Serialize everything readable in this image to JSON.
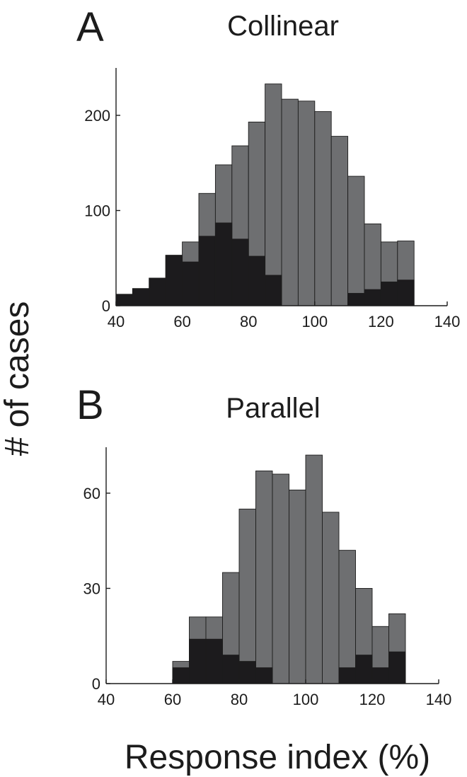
{
  "ylabel": "# of cases",
  "xlabel": "Response index (%)",
  "colors": {
    "total": "#6e6f71",
    "subset": "#1c1b1d"
  },
  "chart_data": [
    {
      "type": "bar",
      "panel": "A",
      "title": "Collinear",
      "bin_width": 5,
      "x": [
        42.5,
        47.5,
        52.5,
        57.5,
        62.5,
        67.5,
        72.5,
        77.5,
        82.5,
        87.5,
        92.5,
        97.5,
        102.5,
        107.5,
        112.5,
        117.5,
        122.5,
        127.5
      ],
      "series": [
        {
          "values": [
            12,
            18,
            29,
            53,
            67,
            118,
            148,
            168,
            193,
            233,
            217,
            215,
            204,
            178,
            136,
            86,
            67,
            68
          ]
        },
        {
          "values": [
            12,
            18,
            29,
            53,
            46,
            73,
            87,
            70,
            52,
            32,
            0,
            0,
            0,
            0,
            13,
            17,
            25,
            27
          ]
        }
      ],
      "xlim": [
        40,
        140
      ],
      "ylim": [
        0,
        240
      ],
      "xticks": [
        40,
        60,
        80,
        100,
        120,
        140
      ],
      "yticks": [
        0,
        100,
        200
      ]
    },
    {
      "type": "bar",
      "panel": "B",
      "title": "Parallel",
      "bin_width": 5,
      "x": [
        42.5,
        47.5,
        52.5,
        57.5,
        62.5,
        67.5,
        72.5,
        77.5,
        82.5,
        87.5,
        92.5,
        97.5,
        102.5,
        107.5,
        112.5,
        117.5,
        122.5,
        127.5
      ],
      "series": [
        {
          "values": [
            0,
            0,
            0,
            0,
            7,
            21,
            21,
            35,
            55,
            67,
            66,
            61,
            72,
            54,
            42,
            30,
            18,
            22
          ]
        },
        {
          "values": [
            0,
            0,
            0,
            0,
            5,
            14,
            14,
            9,
            7,
            5,
            0,
            0,
            0,
            0,
            5,
            9,
            5,
            10
          ]
        }
      ],
      "xlim": [
        40,
        140
      ],
      "ylim": [
        0,
        72
      ],
      "xticks": [
        40,
        60,
        80,
        100,
        120,
        140
      ],
      "yticks": [
        0,
        30,
        60
      ]
    }
  ]
}
